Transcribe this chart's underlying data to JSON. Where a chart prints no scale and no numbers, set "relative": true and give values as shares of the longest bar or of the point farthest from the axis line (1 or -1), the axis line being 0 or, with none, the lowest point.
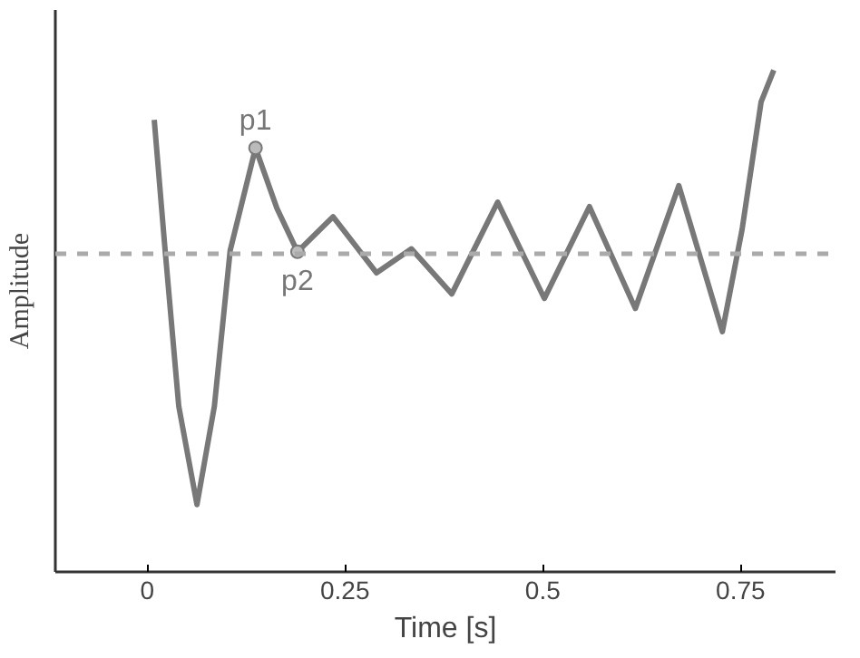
{
  "chart_data": {
    "type": "line",
    "relative": true,
    "xlabel": "Time [s]",
    "ylabel": "Amplitude",
    "x": [
      0.009,
      0.022,
      0.04,
      0.063,
      0.085,
      0.105,
      0.137,
      0.164,
      0.19,
      0.235,
      0.29,
      0.334,
      0.385,
      0.443,
      0.502,
      0.559,
      0.617,
      0.672,
      0.727,
      0.752,
      0.776,
      0.792
    ],
    "series": [
      {
        "color": "#787878",
        "values": [
          0.901,
          0.655,
          0.33,
          0.134,
          0.33,
          0.641,
          0.845,
          0.725,
          0.638,
          0.708,
          0.596,
          0.644,
          0.554,
          0.737,
          0.545,
          0.728,
          0.525,
          0.77,
          0.479,
          0.683,
          0.937,
          1.0
        ]
      }
    ],
    "xlim": [
      -0.116,
      0.87
    ],
    "xticks": [
      0,
      0.25,
      0.5,
      0.75
    ],
    "ref_lines": [
      {
        "axis": "y",
        "value": 0.634,
        "color": "#aaaaaa",
        "line_style": "dashed"
      }
    ],
    "annotations": [
      {
        "text": "p1",
        "x": 0.137,
        "y": 0.845
      },
      {
        "text": "p2",
        "x": 0.19,
        "y": 0.638
      }
    ],
    "grid": false,
    "marker": "none",
    "line_style": "solid"
  }
}
